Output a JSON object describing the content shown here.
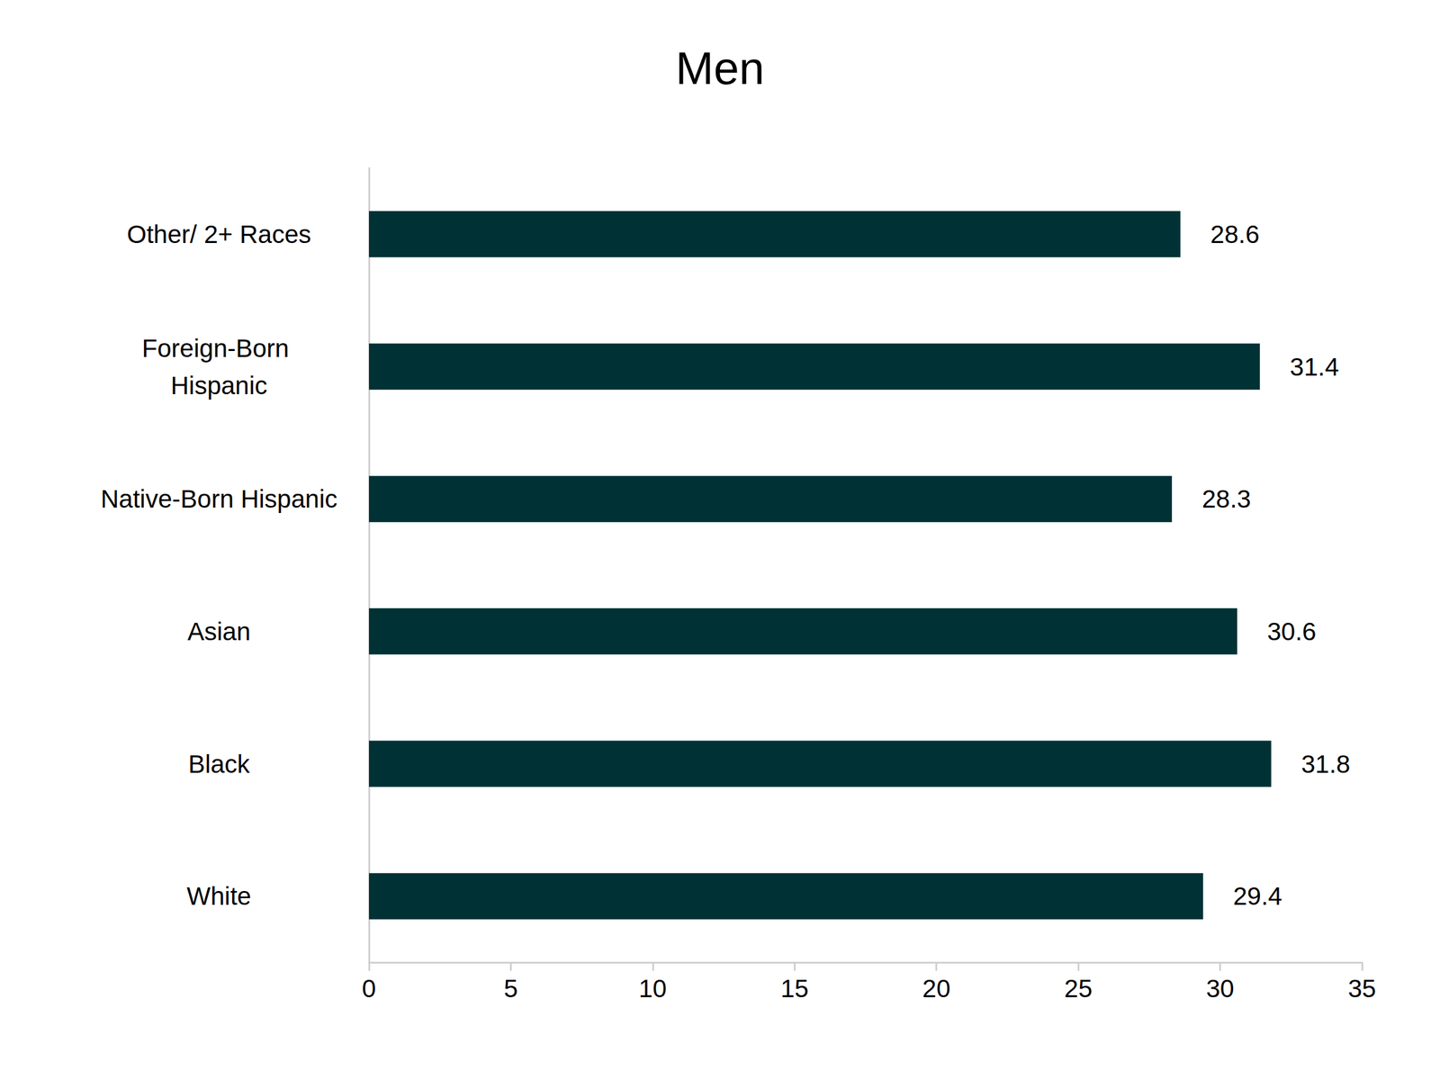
{
  "chart_data": {
    "type": "bar",
    "title": "Men",
    "orientation": "horizontal",
    "categories": [
      "White",
      "Black",
      "Asian",
      "Native-Born Hispanic",
      "Foreign-Born Hispanic",
      "Other/ 2+ Races"
    ],
    "values": [
      29.4,
      31.8,
      30.6,
      28.3,
      31.4,
      28.6
    ],
    "color": "#003135",
    "xlim": [
      0,
      35
    ],
    "xticks": [
      0,
      5,
      10,
      15,
      20,
      25,
      30,
      35
    ],
    "grid": false,
    "data_labels": true
  }
}
